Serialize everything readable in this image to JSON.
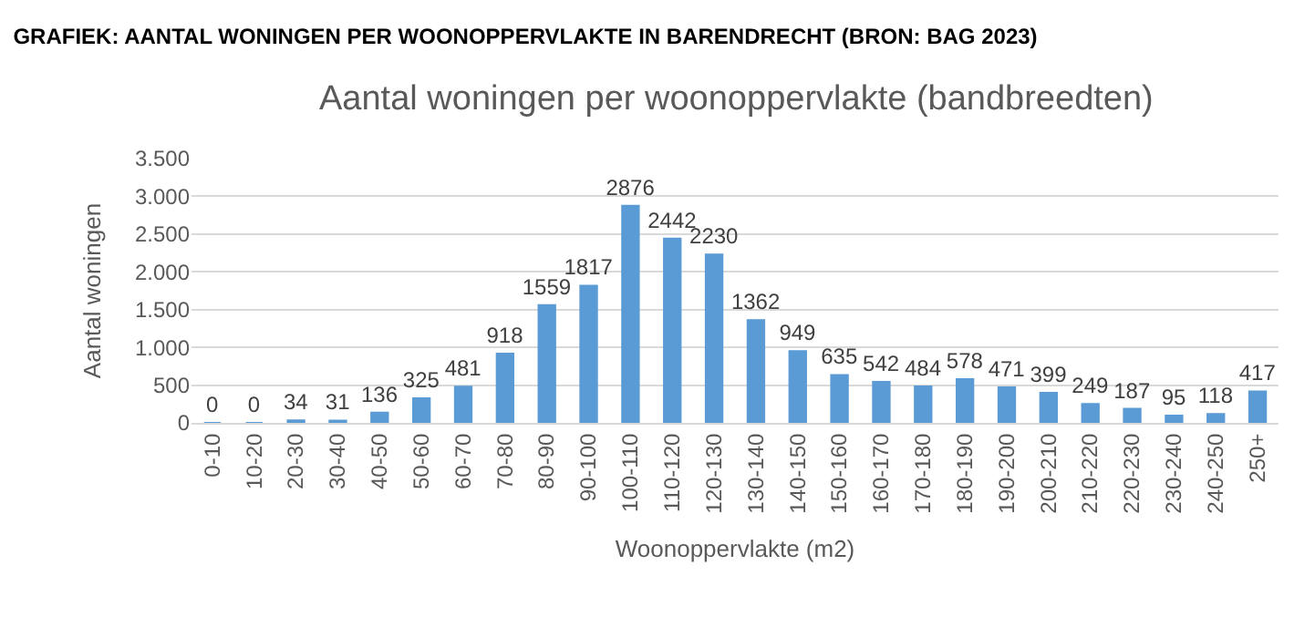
{
  "chart_data": {
    "type": "bar",
    "title": "GRAFIEK: AANTAL WONINGEN PER WOONOPPERVLAKTE IN BARENDRECHT (BRON: BAG 2023)",
    "subtitle": "Aantal woningen per woonoppervlakte (bandbreedten)",
    "xlabel": "Woonoppervlakte (m2)",
    "ylabel": "Aantal woningen",
    "categories": [
      "0-10",
      "10-20",
      "20-30",
      "30-40",
      "40-50",
      "50-60",
      "60-70",
      "70-80",
      "80-90",
      "90-100",
      "100-110",
      "110-120",
      "120-130",
      "130-140",
      "140-150",
      "150-160",
      "160-170",
      "170-180",
      "180-190",
      "190-200",
      "200-210",
      "210-220",
      "220-230",
      "230-240",
      "240-250",
      "250+"
    ],
    "values": [
      0,
      0,
      34,
      31,
      136,
      325,
      481,
      918,
      1559,
      1817,
      2876,
      2442,
      2230,
      1362,
      949,
      635,
      542,
      484,
      578,
      471,
      399,
      249,
      187,
      95,
      118,
      417
    ],
    "color": "#5b9bd5",
    "data_labels": true,
    "grid": "y",
    "legend": false,
    "ylim": [
      0,
      3500
    ],
    "yticks": [
      0,
      {
        "value": 500,
        "label": "500"
      },
      {
        "value": 1000,
        "label": "1.000"
      },
      {
        "value": 1500,
        "label": "1.500"
      },
      {
        "value": 2000,
        "label": "2.000"
      },
      {
        "value": 2500,
        "label": "2.500"
      },
      {
        "value": 3000,
        "label": "3.000"
      },
      {
        "value": 3500,
        "label": "3.500"
      }
    ]
  }
}
